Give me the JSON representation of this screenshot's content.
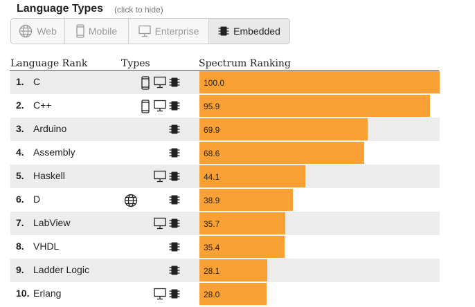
{
  "header": {
    "title": "Language Types",
    "hint": "(click to hide)"
  },
  "filters": [
    {
      "label": "Web",
      "icon": "globe-icon",
      "active": false
    },
    {
      "label": "Mobile",
      "icon": "mobile-phone-icon",
      "active": false
    },
    {
      "label": "Enterprise",
      "icon": "desktop-monitor-icon",
      "active": false
    },
    {
      "label": "Embedded",
      "icon": "chip-icon",
      "active": true
    }
  ],
  "table": {
    "columns": [
      "Language Rank",
      "Types",
      "Spectrum Ranking"
    ],
    "bar_color": "#f9a135",
    "rows": [
      {
        "rank": "1.",
        "name": "C",
        "types": [
          "mobile",
          "enterprise",
          "embedded"
        ],
        "score": 100.0,
        "score_label": "100.0"
      },
      {
        "rank": "2.",
        "name": "C++",
        "types": [
          "mobile",
          "enterprise",
          "embedded"
        ],
        "score": 95.9,
        "score_label": "95.9"
      },
      {
        "rank": "3.",
        "name": "Arduino",
        "types": [
          "embedded"
        ],
        "score": 69.9,
        "score_label": "69.9"
      },
      {
        "rank": "4.",
        "name": "Assembly",
        "types": [
          "embedded"
        ],
        "score": 68.6,
        "score_label": "68.6"
      },
      {
        "rank": "5.",
        "name": "Haskell",
        "types": [
          "enterprise",
          "embedded"
        ],
        "score": 44.1,
        "score_label": "44.1"
      },
      {
        "rank": "6.",
        "name": "D",
        "types": [
          "web",
          "embedded"
        ],
        "score": 38.9,
        "score_label": "38.9"
      },
      {
        "rank": "7.",
        "name": "LabView",
        "types": [
          "enterprise",
          "embedded"
        ],
        "score": 35.7,
        "score_label": "35.7"
      },
      {
        "rank": "8.",
        "name": "VHDL",
        "types": [
          "embedded"
        ],
        "score": 35.4,
        "score_label": "35.4"
      },
      {
        "rank": "9.",
        "name": "Ladder Logic",
        "types": [
          "embedded"
        ],
        "score": 28.1,
        "score_label": "28.1"
      },
      {
        "rank": "10.",
        "name": "Erlang",
        "types": [
          "enterprise",
          "embedded"
        ],
        "score": 28.0,
        "score_label": "28.0"
      }
    ]
  }
}
